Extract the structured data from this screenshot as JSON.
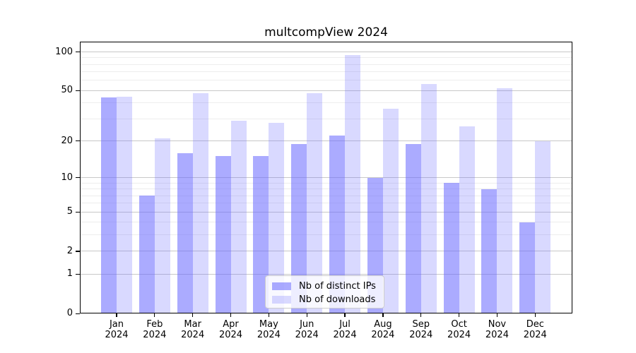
{
  "chart_data": {
    "type": "bar",
    "title": "multcompView 2024",
    "categories": [
      "Jan",
      "Feb",
      "Mar",
      "Apr",
      "May",
      "Jun",
      "Jul",
      "Aug",
      "Sep",
      "Oct",
      "Nov",
      "Dec"
    ],
    "year_label": "2024",
    "series": [
      {
        "name": "Nb of distinct IPs",
        "color": "#6666ff",
        "alpha": 0.55,
        "values": [
          44,
          7,
          16,
          15,
          15,
          19,
          22,
          10,
          19,
          9,
          8,
          4
        ]
      },
      {
        "name": "Nb of downloads",
        "color": "#6666ff",
        "alpha": 0.25,
        "values": [
          45,
          21,
          48,
          29,
          28,
          48,
          95,
          36,
          56,
          26,
          52,
          20
        ]
      }
    ],
    "xlabel": "",
    "ylabel": "",
    "y_scale": "log1p",
    "ylim": [
      0,
      120
    ],
    "y_ticks": [
      0,
      1,
      2,
      5,
      10,
      20,
      50,
      100
    ],
    "y_minor_ticks": [
      3,
      4,
      6,
      7,
      8,
      9,
      30,
      40,
      60,
      70,
      80,
      90
    ],
    "grid": true,
    "legend_position": "lower-center",
    "colors": {
      "grid_major": "#c8c8c8",
      "grid_minor": "#ededed",
      "axis": "#000000",
      "legend_border": "#cccccc"
    }
  }
}
